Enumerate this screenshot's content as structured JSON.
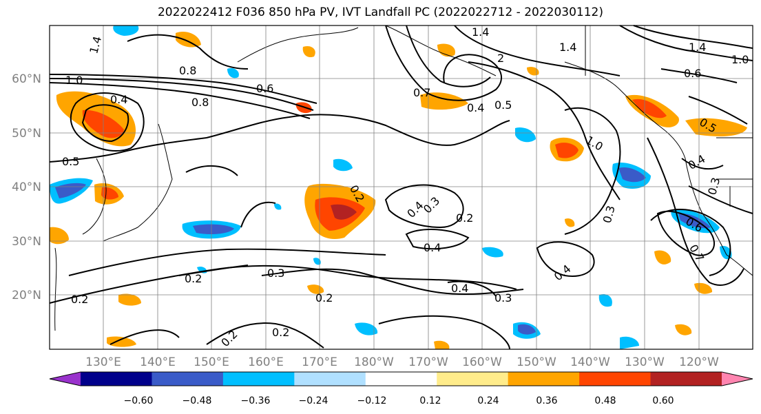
{
  "title": "2022022412 F036 850 hPa PV, IVT Landfall PC (2022022712 - 2022030112)",
  "lat_labels": [
    "60°N",
    "50°N",
    "40°N",
    "30°N",
    "20°N"
  ],
  "lon_labels": [
    "130°E",
    "140°E",
    "150°E",
    "160°E",
    "170°E",
    "180°W",
    "170°W",
    "160°W",
    "150°W",
    "140°W",
    "130°W",
    "120°W"
  ],
  "colorbar": {
    "colors": [
      "#9932cc",
      "#00008b",
      "#3a5bc8",
      "#00bfff",
      "#b0e0ff",
      "#ffffff",
      "#ffec8b",
      "#ffa500",
      "#ff4500",
      "#b22222",
      "#ff85b0"
    ],
    "tick_labels": [
      "−0.60",
      "−0.48",
      "−0.36",
      "−0.24",
      "−0.12",
      "0.12",
      "0.24",
      "0.36",
      "0.48",
      "0.60"
    ]
  },
  "contour_labels": [
    {
      "text": "1.4"
    },
    {
      "text": "1.0"
    },
    {
      "text": "0.8"
    },
    {
      "text": "0.8"
    },
    {
      "text": "0.4"
    },
    {
      "text": "0.5"
    },
    {
      "text": "0.6"
    },
    {
      "text": "0.2"
    },
    {
      "text": "0.4"
    },
    {
      "text": "0.3"
    },
    {
      "text": "0.2"
    },
    {
      "text": "0.4"
    },
    {
      "text": "0.2"
    },
    {
      "text": "0.3"
    },
    {
      "text": "0.2"
    },
    {
      "text": "0.2"
    },
    {
      "text": "0.2"
    },
    {
      "text": "0.4"
    },
    {
      "text": "0.3"
    },
    {
      "text": "0.4"
    },
    {
      "text": "1.4"
    },
    {
      "text": "2"
    },
    {
      "text": "0.7"
    },
    {
      "text": "0.4"
    },
    {
      "text": "0.5"
    },
    {
      "text": "1.4"
    },
    {
      "text": "1.0"
    },
    {
      "text": "0.6"
    },
    {
      "text": "1.4"
    },
    {
      "text": "1.0"
    },
    {
      "text": "0.4"
    },
    {
      "text": "0.3"
    },
    {
      "text": "0.3"
    },
    {
      "text": "0.6"
    },
    {
      "text": "0.7"
    },
    {
      "text": "0.5"
    },
    {
      "text": "0.2"
    }
  ]
}
